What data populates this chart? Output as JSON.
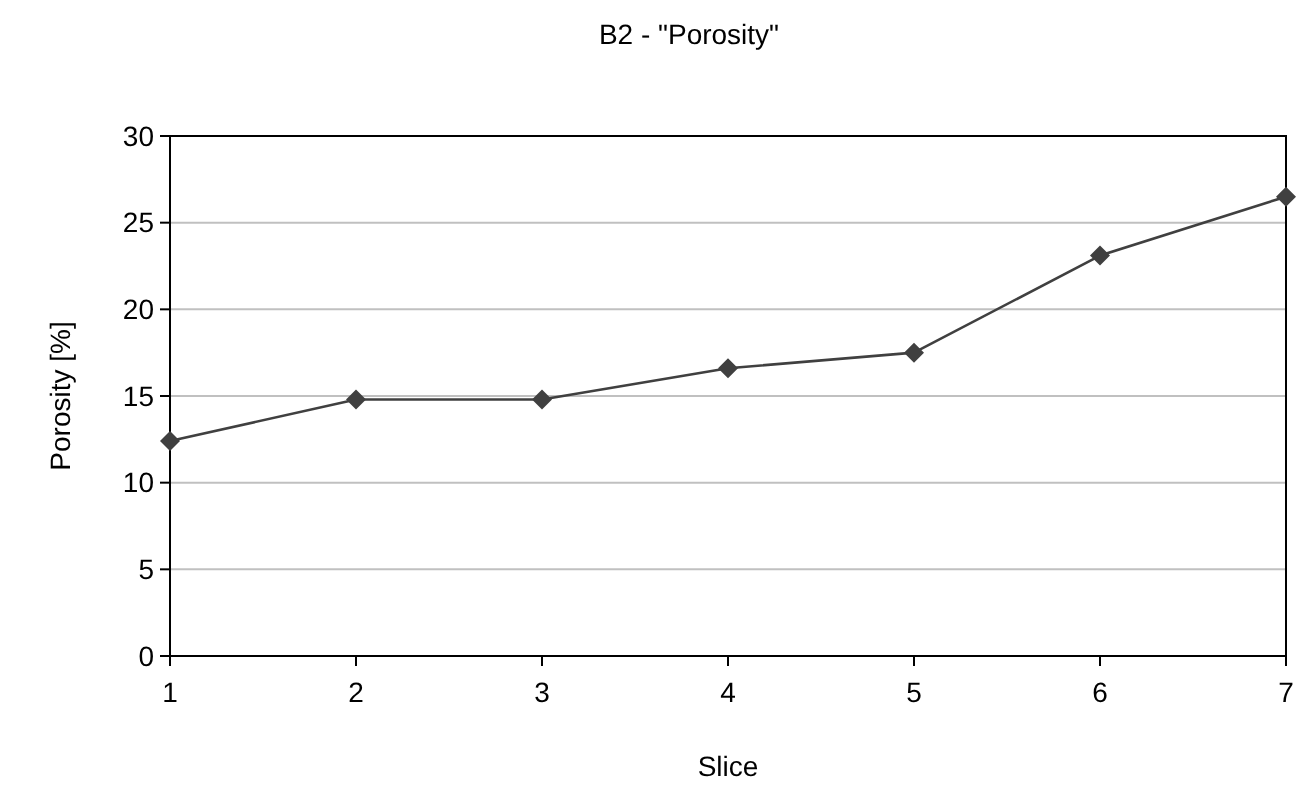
{
  "chart_data": {
    "type": "line",
    "title": "B2 - \"Porosity\"",
    "xlabel": "Slice",
    "ylabel": "Porosity [%]",
    "x": [
      1,
      2,
      3,
      4,
      5,
      6,
      7
    ],
    "series": [
      {
        "color": "#404040",
        "values": [
          12.4,
          14.8,
          14.8,
          16.6,
          17.5,
          23.1,
          26.5
        ]
      }
    ],
    "xlim": [
      1,
      7
    ],
    "xticks": [
      1,
      2,
      3,
      4,
      5,
      6,
      7
    ],
    "ylim": [
      0,
      30
    ],
    "yticks": [
      0,
      5,
      10,
      15,
      20,
      25,
      30
    ],
    "grid": "y",
    "marker": "diamond",
    "line_style": "solid"
  }
}
